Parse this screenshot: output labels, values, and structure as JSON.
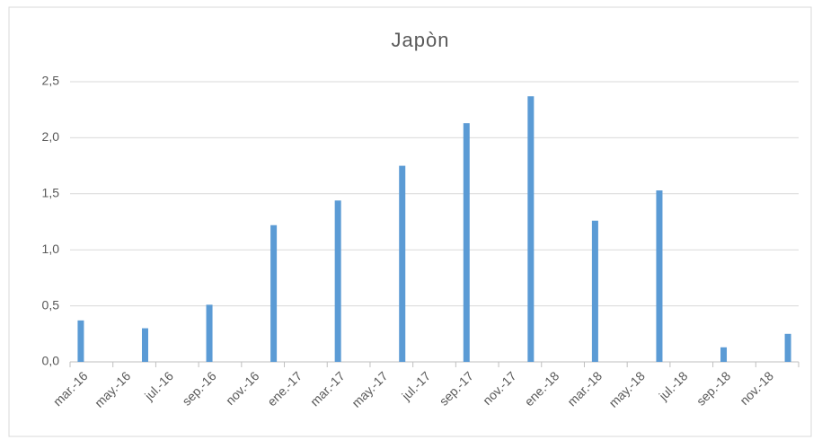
{
  "chart_data": {
    "type": "bar",
    "title": "Japòn",
    "categories": [
      "mar.-16",
      null,
      "may.-16",
      null,
      "jul.-16",
      null,
      "sep.-16",
      null,
      "nov.-16",
      null,
      "ene.-17",
      null,
      "mar.-17",
      null,
      "may.-17",
      null,
      "jul.-17",
      null,
      "sep.-17",
      null,
      "nov.-17",
      null,
      "ene.-18",
      null,
      "mar.-18",
      null,
      "may.-18",
      null,
      "jul.-18",
      null,
      "sep.-18",
      null,
      "nov.-18",
      null
    ],
    "values": [
      0.37,
      null,
      null,
      0.3,
      null,
      null,
      0.51,
      null,
      null,
      1.22,
      null,
      null,
      1.44,
      null,
      null,
      1.75,
      null,
      null,
      2.13,
      null,
      null,
      2.37,
      null,
      null,
      1.26,
      null,
      null,
      1.53,
      null,
      null,
      0.13,
      null,
      null,
      0.25
    ],
    "color": "#5b9bd5",
    "ylim": [
      0,
      2.5
    ],
    "yticks": [
      {
        "value": 0,
        "label": "0,0"
      },
      {
        "value": 0.5,
        "label": "0,5"
      },
      {
        "value": 1,
        "label": "1,0"
      },
      {
        "value": 1.5,
        "label": "1,5"
      },
      {
        "value": 2,
        "label": "2,0"
      },
      {
        "value": 2.5,
        "label": "2,5"
      }
    ],
    "grid": true
  }
}
